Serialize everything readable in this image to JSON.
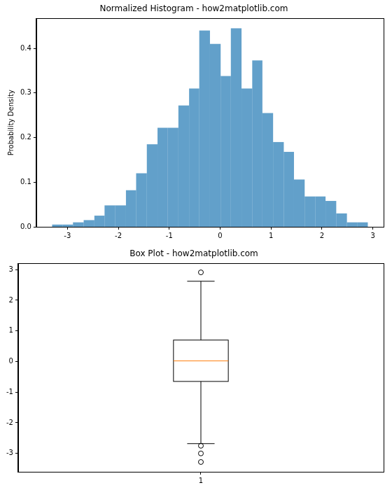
{
  "chart_data": [
    {
      "type": "histogram",
      "title": "Normalized Histogram - how2matplotlib.com",
      "y_label": "Probability Density",
      "color": "#1f77b4",
      "bins": [
        -3.3,
        -3.09,
        -2.89,
        -2.68,
        -2.47,
        -2.27,
        -2.06,
        -1.85,
        -1.65,
        -1.44,
        -1.23,
        -1.03,
        -0.82,
        -0.61,
        -0.41,
        -0.2,
        0.01,
        0.21,
        0.42,
        0.63,
        0.83,
        1.04,
        1.25,
        1.45,
        1.66,
        1.87,
        2.07,
        2.28,
        2.49,
        2.69,
        2.9
      ],
      "values": [
        0.005,
        0.005,
        0.01,
        0.015,
        0.025,
        0.048,
        0.048,
        0.082,
        0.12,
        0.185,
        0.222,
        0.222,
        0.272,
        0.31,
        0.44,
        0.41,
        0.338,
        0.445,
        0.31,
        0.373,
        0.255,
        0.19,
        0.168,
        0.106,
        0.068,
        0.068,
        0.058,
        0.03,
        0.01,
        0.01
      ],
      "xlim": [
        -3.61,
        3.21
      ],
      "xticks": [
        -3,
        -2,
        -1,
        0,
        1,
        2,
        3
      ],
      "ylim": [
        0,
        0.467
      ],
      "yticks": [
        {
          "value": 0,
          "label": "0.0"
        },
        0.1,
        0.2,
        0.3,
        0.4
      ],
      "grid": false
    },
    {
      "type": "box",
      "title": "Box Plot - how2matplotlib.com",
      "boxes": [
        {
          "x": 1,
          "whisker_low": -2.68,
          "q1": -0.65,
          "median": 0.02,
          "q3": 0.7,
          "whisker_high": 2.62,
          "outliers": [
            2.91,
            -2.75,
            -3.0,
            -3.28
          ]
        }
      ],
      "color": "#000000",
      "median_color": "#ff7f0e",
      "xlim": [
        0.5,
        1.5
      ],
      "xticks": [
        1
      ],
      "ylim": [
        -3.6,
        3.2
      ],
      "yticks": [
        -3,
        -2,
        -1,
        0,
        1,
        2,
        3
      ],
      "grid": false
    }
  ]
}
